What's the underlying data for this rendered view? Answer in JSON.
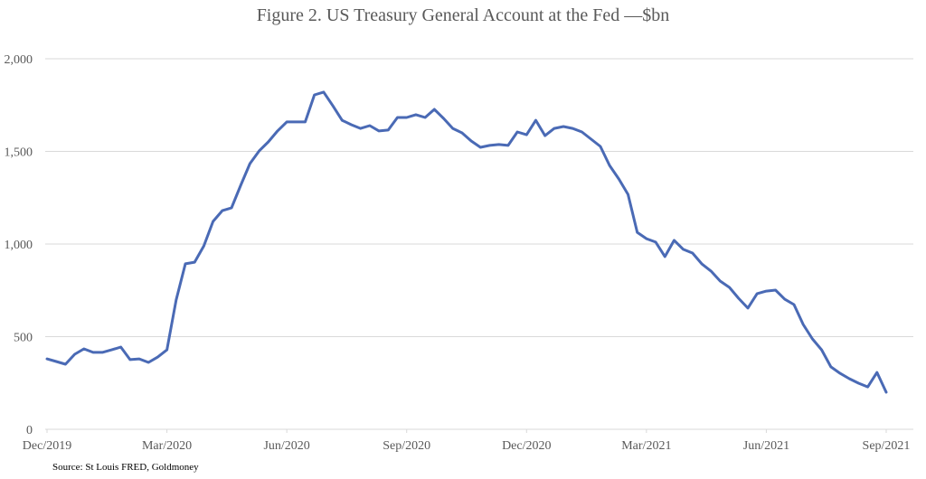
{
  "chart_data": {
    "type": "line",
    "title": "Figure 2. US Treasury General Account at the Fed —$bn",
    "xlabel": "",
    "ylabel": "",
    "ylim": [
      0,
      2000
    ],
    "yticks": [
      0,
      500,
      1000,
      1500,
      2000
    ],
    "ytick_labels": [
      "0",
      "500",
      "1,000",
      "1,500",
      "2,000"
    ],
    "xtick_labels": [
      "Dec/2019",
      "Mar/2020",
      "Jun/2020",
      "Sep/2020",
      "Dec/2020",
      "Mar/2021",
      "Jun/2021",
      "Sep/2021"
    ],
    "xtick_week_index": [
      0,
      13,
      26,
      39,
      52,
      65,
      78,
      91
    ],
    "x_unit": "week index from Dec/2019",
    "grid": true,
    "legend": "none",
    "line_color": "#4a6ab5",
    "series": [
      {
        "name": "US Treasury General Account",
        "values": [
          380,
          366,
          351,
          405,
          434,
          415,
          415,
          429,
          444,
          376,
          380,
          361,
          390,
          429,
          698,
          893,
          902,
          990,
          1122,
          1180,
          1195,
          1317,
          1434,
          1502,
          1551,
          1610,
          1659,
          1659,
          1659,
          1805,
          1820,
          1746,
          1668,
          1644,
          1624,
          1639,
          1610,
          1615,
          1683,
          1683,
          1698,
          1683,
          1727,
          1678,
          1624,
          1600,
          1556,
          1522,
          1532,
          1537,
          1532,
          1605,
          1590,
          1668,
          1585,
          1624,
          1634,
          1624,
          1605,
          1566,
          1527,
          1424,
          1351,
          1268,
          1063,
          1029,
          1010,
          932,
          1020,
          971,
          951,
          893,
          854,
          800,
          766,
          707,
          654,
          732,
          746,
          751,
          702,
          673,
          566,
          488,
          429,
          337,
          302,
          273,
          249,
          229,
          307,
          200
        ]
      }
    ]
  },
  "footer": {
    "source": "Source: St Louis FRED, Goldmoney"
  }
}
